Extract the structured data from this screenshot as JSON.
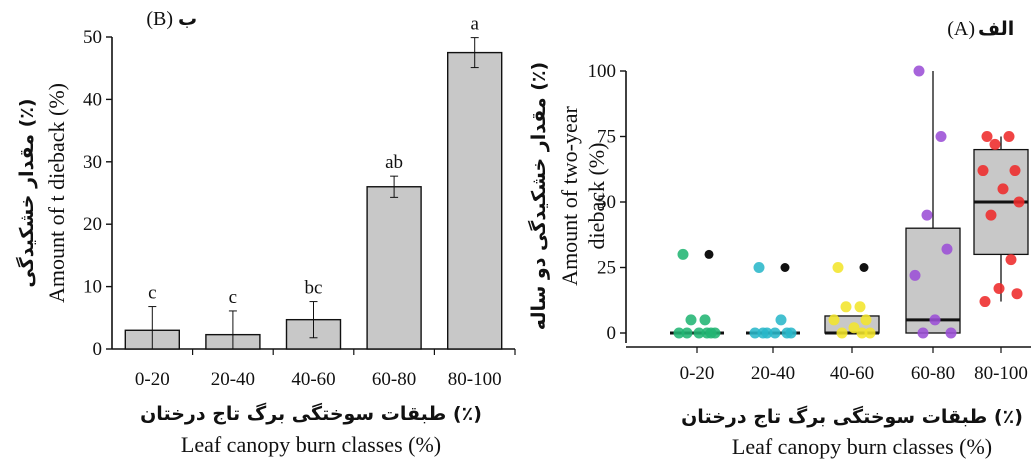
{
  "chart_data": [
    {
      "type": "bar",
      "panel_label_en": "(B)",
      "panel_label_fa": "ب",
      "categories": [
        "0-20",
        "20-40",
        "40-60",
        "60-80",
        "80-100"
      ],
      "values": [
        3,
        2.3,
        4.7,
        26,
        47.5
      ],
      "errors": [
        3.8,
        3.8,
        2.9,
        1.7,
        2.4
      ],
      "significance_letters": [
        "c",
        "c",
        "bc",
        "ab",
        "a"
      ],
      "ylim": [
        0,
        50
      ],
      "yticks": [
        0,
        10,
        20,
        30,
        40,
        50
      ],
      "ylabel_fa": "مقدار خشکیدگی (٪)",
      "ylabel_en": "Amount of t dieback (%)",
      "xlabel_fa": "طبقات سوختگی برگ تاج درختان (٪)",
      "xlabel_en": "Leaf canopy burn classes (%)",
      "bar_color": "#c8c8c8"
    },
    {
      "type": "box",
      "panel_label_en": "(A)",
      "panel_label_fa": "الف",
      "categories": [
        "0-20",
        "20-40",
        "40-60",
        "60-80",
        "80-100"
      ],
      "ylim": [
        0,
        100
      ],
      "yticks": [
        0,
        25,
        50,
        75,
        100
      ],
      "ylabel_fa": "مقدار خشکیدگی دو ساله (٪)",
      "ylabel_en_1": "Amount of two-year",
      "ylabel_en_2": "dieback (%)",
      "xlabel_fa": "طبقات سوختگی برگ تاج درختان (٪)",
      "xlabel_en": "Leaf canopy burn classes (%)",
      "colors": [
        "#22b573",
        "#2ab7c9",
        "#f2e52b",
        "#9b4fd6",
        "#ee2a2a"
      ],
      "boxes": [
        {
          "q1": 0,
          "median": 0,
          "q3": 0,
          "whisker_low": 0,
          "whisker_high": 0
        },
        {
          "q1": 0,
          "median": 0,
          "q3": 0,
          "whisker_low": 0,
          "whisker_high": 0
        },
        {
          "q1": 0,
          "median": 0,
          "q3": 6.5,
          "whisker_low": 0,
          "whisker_high": 6.5
        },
        {
          "q1": 0,
          "median": 5,
          "q3": 40,
          "whisker_low": 0,
          "whisker_high": 100
        },
        {
          "q1": 30,
          "median": 50,
          "q3": 70,
          "whisker_low": 12,
          "whisker_high": 75
        }
      ],
      "outliers": [
        {
          "category": 0,
          "y": 30
        },
        {
          "category": 1,
          "y": 25
        },
        {
          "category": 2,
          "y": 25
        }
      ],
      "points": [
        {
          "category": 0,
          "y": 30
        },
        {
          "category": 0,
          "y": 5
        },
        {
          "category": 0,
          "y": 5
        },
        {
          "category": 0,
          "y": 0
        },
        {
          "category": 0,
          "y": 0
        },
        {
          "category": 0,
          "y": 0
        },
        {
          "category": 0,
          "y": 0
        },
        {
          "category": 0,
          "y": 0
        },
        {
          "category": 0,
          "y": 0
        },
        {
          "category": 1,
          "y": 25
        },
        {
          "category": 1,
          "y": 5
        },
        {
          "category": 1,
          "y": 0
        },
        {
          "category": 1,
          "y": 0
        },
        {
          "category": 1,
          "y": 0
        },
        {
          "category": 1,
          "y": 0
        },
        {
          "category": 1,
          "y": 0
        },
        {
          "category": 1,
          "y": 0
        },
        {
          "category": 2,
          "y": 25
        },
        {
          "category": 2,
          "y": 10
        },
        {
          "category": 2,
          "y": 10
        },
        {
          "category": 2,
          "y": 5
        },
        {
          "category": 2,
          "y": 5
        },
        {
          "category": 2,
          "y": 2
        },
        {
          "category": 2,
          "y": 0
        },
        {
          "category": 2,
          "y": 0
        },
        {
          "category": 2,
          "y": 0
        },
        {
          "category": 3,
          "y": 100
        },
        {
          "category": 3,
          "y": 75
        },
        {
          "category": 3,
          "y": 45
        },
        {
          "category": 3,
          "y": 32
        },
        {
          "category": 3,
          "y": 22
        },
        {
          "category": 3,
          "y": 5
        },
        {
          "category": 3,
          "y": 0
        },
        {
          "category": 3,
          "y": 0
        },
        {
          "category": 4,
          "y": 75
        },
        {
          "category": 4,
          "y": 75
        },
        {
          "category": 4,
          "y": 72
        },
        {
          "category": 4,
          "y": 62
        },
        {
          "category": 4,
          "y": 62
        },
        {
          "category": 4,
          "y": 55
        },
        {
          "category": 4,
          "y": 50
        },
        {
          "category": 4,
          "y": 45
        },
        {
          "category": 4,
          "y": 28
        },
        {
          "category": 4,
          "y": 17
        },
        {
          "category": 4,
          "y": 15
        },
        {
          "category": 4,
          "y": 12
        }
      ]
    }
  ]
}
